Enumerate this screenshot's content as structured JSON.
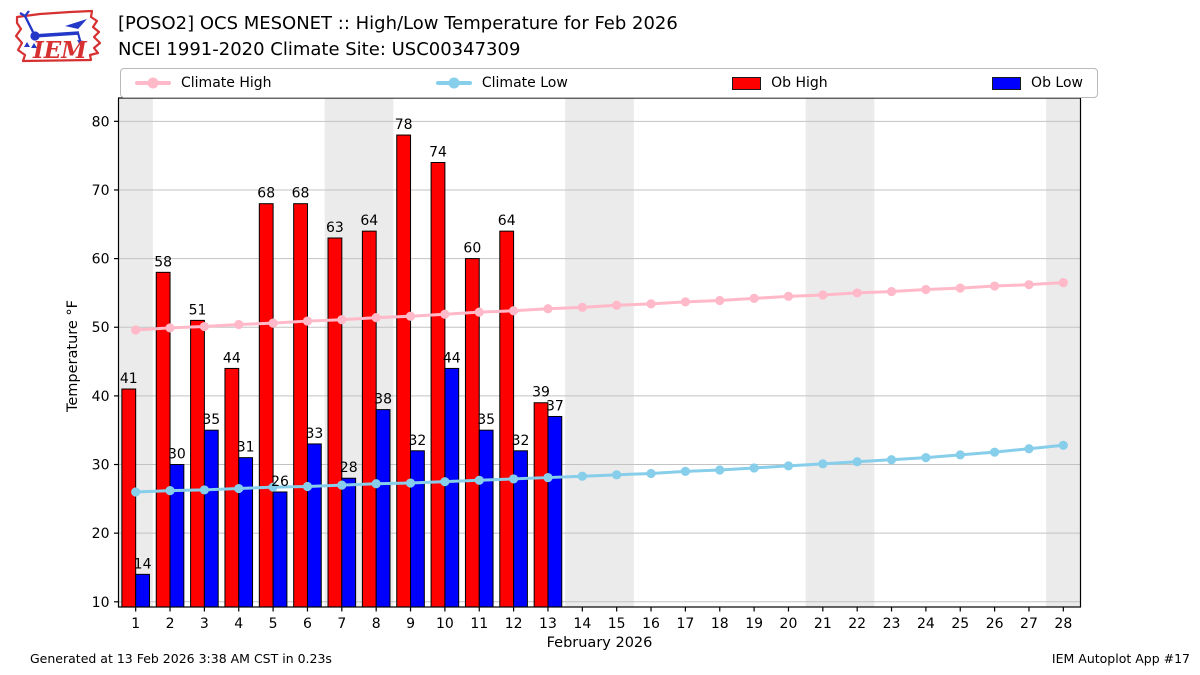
{
  "header": {
    "title_line1": "[POSO2] OCS MESONET :: High/Low Temperature for Feb 2026",
    "title_line2": "NCEI 1991-2020 Climate Site: USC00347309",
    "logo_text": "IEM"
  },
  "legend": {
    "items": [
      {
        "label": "Climate High",
        "type": "line",
        "color": "#ffb9c9"
      },
      {
        "label": "Climate Low",
        "type": "line",
        "color": "#87ceeb"
      },
      {
        "label": "Ob High",
        "type": "patch",
        "color": "#ff0000"
      },
      {
        "label": "Ob Low",
        "type": "patch",
        "color": "#0000ff"
      }
    ]
  },
  "footer": {
    "left": "Generated at 13 Feb 2026 3:38 AM CST in 0.23s",
    "right": "IEM Autoplot App #17"
  },
  "chart_data": {
    "type": "bar",
    "title": "[POSO2] OCS MESONET :: High/Low Temperature for Feb 2026",
    "subtitle": "NCEI 1991-2020 Climate Site: USC00347309",
    "xlabel": "February 2026",
    "ylabel": "Temperature °F",
    "x_ticks": [
      1,
      2,
      3,
      4,
      5,
      6,
      7,
      8,
      9,
      10,
      11,
      12,
      13,
      14,
      15,
      16,
      17,
      18,
      19,
      20,
      21,
      22,
      23,
      24,
      25,
      26,
      27,
      28
    ],
    "yticks": [
      10,
      20,
      30,
      40,
      50,
      60,
      70,
      80
    ],
    "ylim": [
      9.3,
      83.4
    ],
    "grid": "horizontal",
    "legend_position": "top",
    "weekend_bands": [
      [
        1,
        1
      ],
      [
        7,
        8
      ],
      [
        14,
        15
      ],
      [
        21,
        22
      ],
      [
        28,
        28
      ]
    ],
    "weekend_band_color": "#ebebeb",
    "series": [
      {
        "name": "Ob High",
        "type": "bar",
        "color": "#ff0000",
        "days": [
          1,
          2,
          3,
          4,
          5,
          6,
          7,
          8,
          9,
          10,
          11,
          12,
          13
        ],
        "values": [
          41,
          58,
          51,
          44,
          68,
          68,
          63,
          64,
          78,
          74,
          60,
          64,
          39
        ],
        "labels_shown": true
      },
      {
        "name": "Ob Low",
        "type": "bar",
        "color": "#0000ff",
        "days": [
          1,
          2,
          3,
          4,
          5,
          6,
          7,
          8,
          9,
          10,
          11,
          12,
          13
        ],
        "values": [
          14,
          30,
          35,
          31,
          26,
          33,
          28,
          38,
          32,
          44,
          35,
          32,
          37
        ],
        "labels_shown": true
      },
      {
        "name": "Climate High",
        "type": "line",
        "color": "#ffb9c9",
        "days": [
          1,
          2,
          3,
          4,
          5,
          6,
          7,
          8,
          9,
          10,
          11,
          12,
          13,
          14,
          15,
          16,
          17,
          18,
          19,
          20,
          21,
          22,
          23,
          24,
          25,
          26,
          27,
          28
        ],
        "values": [
          49.6,
          49.9,
          50.1,
          50.4,
          50.6,
          50.9,
          51.1,
          51.4,
          51.6,
          51.9,
          52.2,
          52.4,
          52.7,
          52.9,
          53.2,
          53.4,
          53.7,
          53.9,
          54.2,
          54.5,
          54.7,
          55.0,
          55.2,
          55.5,
          55.7,
          56.0,
          56.2,
          56.5
        ]
      },
      {
        "name": "Climate Low",
        "type": "line",
        "color": "#87ceeb",
        "days": [
          1,
          2,
          3,
          4,
          5,
          6,
          7,
          8,
          9,
          10,
          11,
          12,
          13,
          14,
          15,
          16,
          17,
          18,
          19,
          20,
          21,
          22,
          23,
          24,
          25,
          26,
          27,
          28
        ],
        "values": [
          26.0,
          26.2,
          26.3,
          26.5,
          26.7,
          26.8,
          27.0,
          27.2,
          27.3,
          27.5,
          27.7,
          27.9,
          28.1,
          28.3,
          28.5,
          28.7,
          29.0,
          29.2,
          29.5,
          29.8,
          30.1,
          30.4,
          30.7,
          31.0,
          31.4,
          31.8,
          32.3,
          32.8
        ]
      }
    ]
  }
}
